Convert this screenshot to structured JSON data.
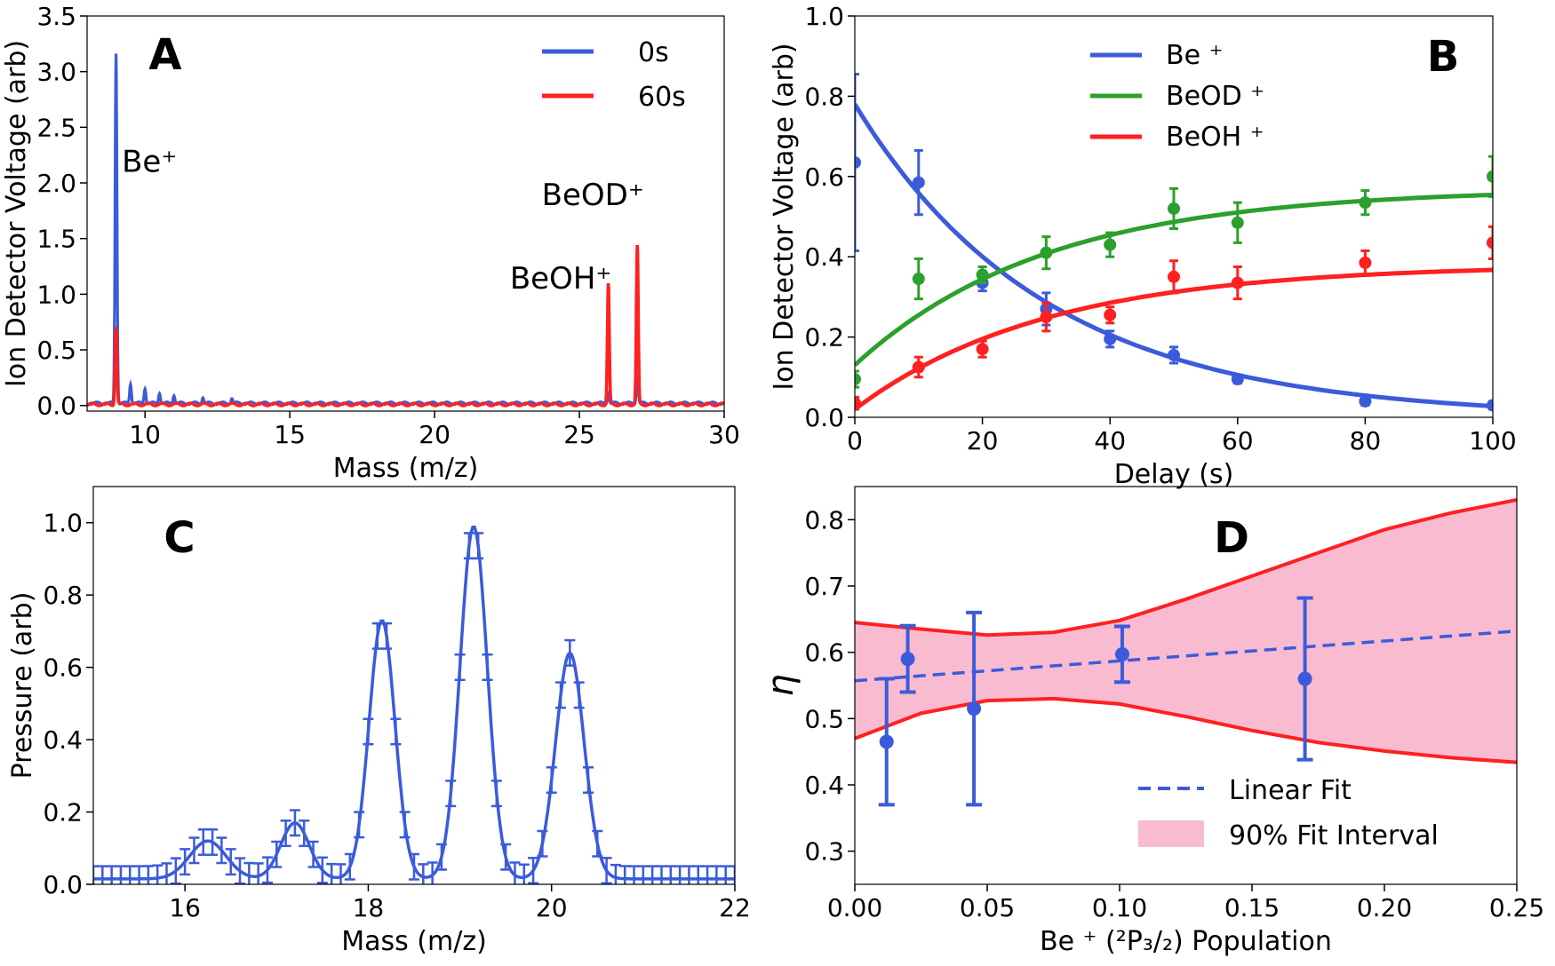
{
  "chart_data": [
    {
      "panel": "A",
      "type": "line",
      "panel_label": "A",
      "xlabel": "Mass (m/z)",
      "ylabel": "Ion Detector Voltage (arb)",
      "xlim": [
        8,
        30
      ],
      "ylim": [
        -0.05,
        3.5
      ],
      "xticks": [
        10,
        15,
        20,
        25,
        30
      ],
      "yticks": [
        0.0,
        0.5,
        1.0,
        1.5,
        2.0,
        2.5,
        3.0,
        3.5
      ],
      "legend_position": "top-right",
      "annotations": [
        {
          "text": "Be⁺",
          "x": 9.2,
          "y": 2.1
        },
        {
          "text": "BeOH⁺",
          "x": 22.6,
          "y": 1.05
        },
        {
          "text": "BeOD⁺",
          "x": 23.7,
          "y": 1.8
        }
      ],
      "series": [
        {
          "name": "0s",
          "color": "#3b5bdb",
          "peaks": [
            [
              9.0,
              3.15
            ],
            [
              9.5,
              0.18
            ],
            [
              10.0,
              0.14
            ],
            [
              10.5,
              0.1
            ],
            [
              11.0,
              0.08
            ],
            [
              12.0,
              0.06
            ],
            [
              13.0,
              0.05
            ],
            [
              26.0,
              0.1
            ],
            [
              27.0,
              0.27
            ]
          ],
          "baseline": 0.02
        },
        {
          "name": "60s",
          "color": "#ff2020",
          "peaks": [
            [
              9.0,
              0.7
            ],
            [
              26.0,
              1.08
            ],
            [
              27.0,
              1.42
            ]
          ],
          "baseline": 0.01
        }
      ]
    },
    {
      "panel": "B",
      "type": "scatter",
      "panel_label": "B",
      "xlabel": "Delay (s)",
      "ylabel": "Ion Detector Voltage (arb)",
      "xlim": [
        0,
        100
      ],
      "ylim": [
        0,
        1.0
      ],
      "xticks": [
        0,
        20,
        40,
        60,
        80,
        100
      ],
      "yticks": [
        0.0,
        0.2,
        0.4,
        0.6,
        0.8,
        1.0
      ],
      "legend_position": "top-center",
      "series": [
        {
          "name": "Be ⁺",
          "color": "#3b5bdb",
          "x": [
            0,
            10,
            20,
            30,
            40,
            50,
            60,
            80,
            100
          ],
          "y": [
            0.635,
            0.585,
            0.335,
            0.27,
            0.195,
            0.155,
            0.095,
            0.04,
            0.03
          ],
          "err": [
            0.22,
            0.08,
            0.02,
            0.04,
            0.02,
            0.02,
            0.01,
            0.01,
            0.01
          ],
          "fit": {
            "model": "exp_decay",
            "a": 0.78,
            "tau": 30,
            "c": 0.0
          }
        },
        {
          "name": "BeOD ⁺",
          "color": "#2ca02c",
          "x": [
            0,
            10,
            20,
            30,
            40,
            50,
            60,
            80,
            100
          ],
          "y": [
            0.095,
            0.345,
            0.355,
            0.41,
            0.43,
            0.52,
            0.485,
            0.535,
            0.6
          ],
          "err": [
            0.02,
            0.05,
            0.02,
            0.04,
            0.03,
            0.05,
            0.05,
            0.03,
            0.05
          ],
          "fit": {
            "model": "exp_rise",
            "a": 0.57,
            "b": 0.44,
            "tau": 30
          }
        },
        {
          "name": "BeOH ⁺",
          "color": "#ff2020",
          "x": [
            0,
            10,
            20,
            30,
            40,
            50,
            60,
            80,
            100
          ],
          "y": [
            0.035,
            0.125,
            0.17,
            0.25,
            0.255,
            0.35,
            0.335,
            0.385,
            0.435
          ],
          "err": [
            0.015,
            0.025,
            0.02,
            0.035,
            0.02,
            0.04,
            0.04,
            0.03,
            0.04
          ],
          "fit": {
            "model": "exp_rise",
            "a": 0.38,
            "b": 0.36,
            "tau": 30
          }
        }
      ]
    },
    {
      "panel": "C",
      "type": "line",
      "panel_label": "C",
      "xlabel": "Mass (m/z)",
      "ylabel": "Pressure (arb)",
      "xlim": [
        15,
        22
      ],
      "ylim": [
        0,
        1.1
      ],
      "xticks": [
        16,
        18,
        20,
        22
      ],
      "yticks": [
        0.0,
        0.2,
        0.4,
        0.6,
        0.8,
        1.0
      ],
      "series": [
        {
          "name": "",
          "color": "#3b5bdb",
          "peaks": [
            [
              16.25,
              0.105,
              0.28
            ],
            [
              17.2,
              0.155,
              0.22
            ],
            [
              18.15,
              0.715,
              0.2
            ],
            [
              19.15,
              0.975,
              0.21
            ],
            [
              20.2,
              0.625,
              0.22
            ]
          ],
          "baseline": 0.015,
          "x_step": 0.1,
          "err": 0.035
        }
      ]
    },
    {
      "panel": "D",
      "type": "scatter",
      "panel_label": "D",
      "xlabel": "Be ⁺ (²P₃/₂) Population",
      "ylabel": "η",
      "xlim": [
        0,
        0.25
      ],
      "ylim": [
        0.25,
        0.85
      ],
      "xticks": [
        0.0,
        0.05,
        0.1,
        0.15,
        0.2,
        0.25
      ],
      "yticks": [
        0.3,
        0.4,
        0.5,
        0.6,
        0.7,
        0.8
      ],
      "legend_position": "bottom-right",
      "series": [
        {
          "name": "",
          "color": "#3b5bdb",
          "x": [
            0.012,
            0.02,
            0.045,
            0.101,
            0.17
          ],
          "y": [
            0.465,
            0.59,
            0.515,
            0.597,
            0.56
          ],
          "err": [
            0.095,
            0.05,
            0.145,
            0.042,
            0.122
          ]
        },
        {
          "name": "Linear Fit",
          "color": "#3b5bdb",
          "style": "dashed",
          "x": [
            0,
            0.25
          ],
          "y": [
            0.557,
            0.632
          ]
        },
        {
          "name": "90% Fit Interval",
          "color": "#f8bbd0",
          "edge": "#ff2020",
          "x": [
            0,
            0.025,
            0.05,
            0.075,
            0.1,
            0.125,
            0.15,
            0.175,
            0.2,
            0.225,
            0.25
          ],
          "upper": [
            0.645,
            0.635,
            0.626,
            0.63,
            0.648,
            0.68,
            0.715,
            0.75,
            0.785,
            0.81,
            0.83
          ],
          "lower": [
            0.47,
            0.508,
            0.527,
            0.53,
            0.522,
            0.503,
            0.482,
            0.464,
            0.451,
            0.441,
            0.434
          ]
        }
      ]
    }
  ]
}
